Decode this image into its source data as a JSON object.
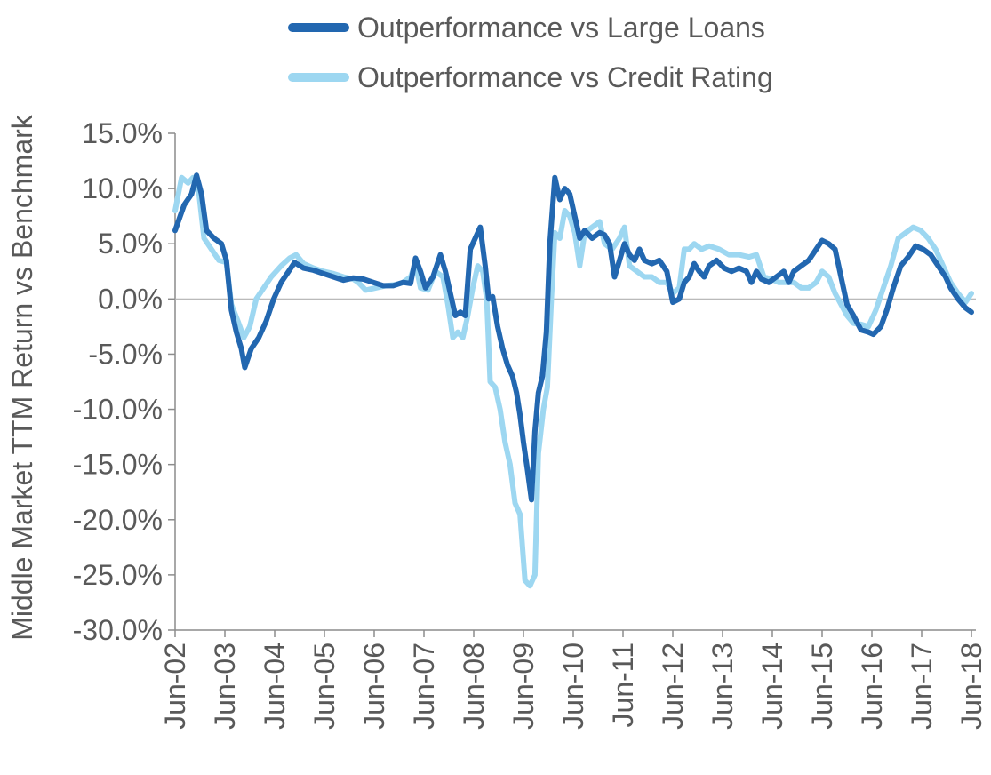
{
  "chart_data": {
    "type": "line",
    "title": "",
    "xlabel": "",
    "ylabel": "Middle Market TTM Return vs Benchmark",
    "ylim": [
      -30,
      15
    ],
    "y_ticks": [
      "15.0%",
      "10.0%",
      "5.0%",
      "0.0%",
      "-5.0%",
      "-10.0%",
      "-15.0%",
      "-20.0%",
      "-25.0%",
      "-30.0%"
    ],
    "x_ticks": [
      "Jun-02",
      "Jun-03",
      "Jun-04",
      "Jun-05",
      "Jun-06",
      "Jun-07",
      "Jun-08",
      "Jun-09",
      "Jun-10",
      "Jun-11",
      "Jun-12",
      "Jun-13",
      "Jun-14",
      "Jun-15",
      "Jun-16",
      "Jun-17",
      "Jun-18"
    ],
    "grid": false,
    "legend_position": "top",
    "series": [
      {
        "name": "Outperformance vs Large Loans",
        "color": "#2267b0",
        "points": [
          [
            2002.42,
            6.2
          ],
          [
            2002.6,
            8.5
          ],
          [
            2002.75,
            9.5
          ],
          [
            2002.85,
            11.2
          ],
          [
            2002.95,
            9.5
          ],
          [
            2003.05,
            6.2
          ],
          [
            2003.2,
            5.5
          ],
          [
            2003.35,
            5.0
          ],
          [
            2003.45,
            3.5
          ],
          [
            2003.55,
            -1.0
          ],
          [
            2003.65,
            -3.0
          ],
          [
            2003.75,
            -4.5
          ],
          [
            2003.82,
            -6.2
          ],
          [
            2003.95,
            -4.5
          ],
          [
            2004.1,
            -3.5
          ],
          [
            2004.25,
            -2.0
          ],
          [
            2004.4,
            0.0
          ],
          [
            2004.55,
            1.5
          ],
          [
            2004.7,
            2.5
          ],
          [
            2004.82,
            3.3
          ],
          [
            2005.0,
            2.8
          ],
          [
            2005.2,
            2.6
          ],
          [
            2005.4,
            2.3
          ],
          [
            2005.6,
            2.0
          ],
          [
            2005.8,
            1.7
          ],
          [
            2006.0,
            1.9
          ],
          [
            2006.2,
            1.8
          ],
          [
            2006.4,
            1.5
          ],
          [
            2006.6,
            1.2
          ],
          [
            2006.8,
            1.2
          ],
          [
            2007.0,
            1.5
          ],
          [
            2007.15,
            1.4
          ],
          [
            2007.25,
            3.7
          ],
          [
            2007.35,
            2.5
          ],
          [
            2007.45,
            1.0
          ],
          [
            2007.6,
            2.0
          ],
          [
            2007.75,
            4.0
          ],
          [
            2007.85,
            2.5
          ],
          [
            2007.95,
            0.5
          ],
          [
            2008.05,
            -1.5
          ],
          [
            2008.15,
            -1.2
          ],
          [
            2008.25,
            -1.5
          ],
          [
            2008.35,
            4.5
          ],
          [
            2008.45,
            5.5
          ],
          [
            2008.55,
            6.5
          ],
          [
            2008.65,
            3.0
          ],
          [
            2008.72,
            0.0
          ],
          [
            2008.8,
            0.2
          ],
          [
            2008.9,
            -2.5
          ],
          [
            2009.0,
            -4.5
          ],
          [
            2009.1,
            -6.0
          ],
          [
            2009.2,
            -7.0
          ],
          [
            2009.28,
            -8.5
          ],
          [
            2009.35,
            -10.5
          ],
          [
            2009.42,
            -13.0
          ],
          [
            2009.5,
            -15.5
          ],
          [
            2009.58,
            -18.2
          ],
          [
            2009.65,
            -12.0
          ],
          [
            2009.72,
            -8.5
          ],
          [
            2009.8,
            -7.0
          ],
          [
            2009.88,
            -3.0
          ],
          [
            2009.95,
            5.0
          ],
          [
            2010.05,
            11.0
          ],
          [
            2010.15,
            9.0
          ],
          [
            2010.25,
            10.0
          ],
          [
            2010.35,
            9.5
          ],
          [
            2010.45,
            7.5
          ],
          [
            2010.55,
            5.5
          ],
          [
            2010.65,
            6.2
          ],
          [
            2010.8,
            5.5
          ],
          [
            2010.95,
            6.0
          ],
          [
            2011.05,
            5.8
          ],
          [
            2011.15,
            5.0
          ],
          [
            2011.25,
            2.0
          ],
          [
            2011.35,
            3.5
          ],
          [
            2011.45,
            5.0
          ],
          [
            2011.55,
            4.0
          ],
          [
            2011.65,
            3.5
          ],
          [
            2011.75,
            4.5
          ],
          [
            2011.85,
            3.5
          ],
          [
            2012.0,
            3.2
          ],
          [
            2012.15,
            3.5
          ],
          [
            2012.3,
            2.5
          ],
          [
            2012.42,
            -0.3
          ],
          [
            2012.55,
            0.0
          ],
          [
            2012.65,
            1.5
          ],
          [
            2012.75,
            2.0
          ],
          [
            2012.85,
            3.2
          ],
          [
            2012.95,
            2.5
          ],
          [
            2013.05,
            2.0
          ],
          [
            2013.15,
            3.0
          ],
          [
            2013.3,
            3.5
          ],
          [
            2013.45,
            2.8
          ],
          [
            2013.6,
            2.5
          ],
          [
            2013.75,
            2.8
          ],
          [
            2013.9,
            2.5
          ],
          [
            2014.0,
            1.5
          ],
          [
            2014.1,
            2.5
          ],
          [
            2014.2,
            1.8
          ],
          [
            2014.35,
            1.5
          ],
          [
            2014.5,
            2.0
          ],
          [
            2014.65,
            2.5
          ],
          [
            2014.75,
            1.5
          ],
          [
            2014.85,
            2.5
          ],
          [
            2015.0,
            3.0
          ],
          [
            2015.15,
            3.5
          ],
          [
            2015.3,
            4.5
          ],
          [
            2015.42,
            5.3
          ],
          [
            2015.55,
            5.0
          ],
          [
            2015.68,
            4.5
          ],
          [
            2015.8,
            2.0
          ],
          [
            2015.92,
            -0.5
          ],
          [
            2016.05,
            -1.5
          ],
          [
            2016.2,
            -2.8
          ],
          [
            2016.35,
            -3.0
          ],
          [
            2016.45,
            -3.2
          ],
          [
            2016.6,
            -2.5
          ],
          [
            2016.72,
            -1.0
          ],
          [
            2016.85,
            1.0
          ],
          [
            2017.0,
            3.0
          ],
          [
            2017.15,
            3.8
          ],
          [
            2017.3,
            4.8
          ],
          [
            2017.45,
            4.5
          ],
          [
            2017.6,
            4.0
          ],
          [
            2017.75,
            3.0
          ],
          [
            2017.9,
            2.0
          ],
          [
            2018.0,
            1.0
          ],
          [
            2018.15,
            0.0
          ],
          [
            2018.3,
            -0.8
          ],
          [
            2018.42,
            -1.2
          ]
        ]
      },
      {
        "name": "Outperformance vs Credit Rating",
        "color": "#9dd7f1",
        "points": [
          [
            2002.42,
            8.0
          ],
          [
            2002.55,
            11.0
          ],
          [
            2002.68,
            10.5
          ],
          [
            2002.78,
            11.0
          ],
          [
            2002.9,
            9.5
          ],
          [
            2003.0,
            5.5
          ],
          [
            2003.15,
            4.5
          ],
          [
            2003.3,
            3.5
          ],
          [
            2003.45,
            3.3
          ],
          [
            2003.55,
            -0.5
          ],
          [
            2003.68,
            -2.0
          ],
          [
            2003.8,
            -3.5
          ],
          [
            2003.92,
            -2.5
          ],
          [
            2004.05,
            0.0
          ],
          [
            2004.2,
            1.0
          ],
          [
            2004.35,
            2.0
          ],
          [
            2004.55,
            3.0
          ],
          [
            2004.72,
            3.7
          ],
          [
            2004.85,
            4.0
          ],
          [
            2005.0,
            3.2
          ],
          [
            2005.2,
            2.8
          ],
          [
            2005.4,
            2.5
          ],
          [
            2005.6,
            2.3
          ],
          [
            2005.8,
            2.0
          ],
          [
            2006.0,
            1.8
          ],
          [
            2006.1,
            1.5
          ],
          [
            2006.25,
            0.8
          ],
          [
            2006.45,
            1.0
          ],
          [
            2006.65,
            1.2
          ],
          [
            2006.85,
            1.3
          ],
          [
            2007.0,
            1.5
          ],
          [
            2007.15,
            2.0
          ],
          [
            2007.25,
            3.2
          ],
          [
            2007.35,
            1.0
          ],
          [
            2007.5,
            0.8
          ],
          [
            2007.65,
            2.5
          ],
          [
            2007.8,
            2.0
          ],
          [
            2007.9,
            -0.5
          ],
          [
            2008.0,
            -3.5
          ],
          [
            2008.1,
            -3.0
          ],
          [
            2008.2,
            -3.5
          ],
          [
            2008.3,
            -1.5
          ],
          [
            2008.4,
            1.0
          ],
          [
            2008.5,
            3.0
          ],
          [
            2008.6,
            2.5
          ],
          [
            2008.68,
            0.0
          ],
          [
            2008.75,
            -7.5
          ],
          [
            2008.85,
            -8.0
          ],
          [
            2008.95,
            -10.0
          ],
          [
            2009.05,
            -13.0
          ],
          [
            2009.15,
            -15.0
          ],
          [
            2009.25,
            -18.5
          ],
          [
            2009.35,
            -19.5
          ],
          [
            2009.45,
            -25.5
          ],
          [
            2009.55,
            -26.0
          ],
          [
            2009.65,
            -25.0
          ],
          [
            2009.72,
            -14.0
          ],
          [
            2009.82,
            -10.0
          ],
          [
            2009.9,
            -8.0
          ],
          [
            2009.98,
            0.0
          ],
          [
            2010.05,
            6.0
          ],
          [
            2010.15,
            5.5
          ],
          [
            2010.25,
            8.0
          ],
          [
            2010.35,
            7.5
          ],
          [
            2010.45,
            6.0
          ],
          [
            2010.55,
            3.0
          ],
          [
            2010.65,
            6.0
          ],
          [
            2010.8,
            6.5
          ],
          [
            2010.95,
            7.0
          ],
          [
            2011.05,
            5.0
          ],
          [
            2011.2,
            4.5
          ],
          [
            2011.35,
            5.5
          ],
          [
            2011.45,
            6.5
          ],
          [
            2011.55,
            3.0
          ],
          [
            2011.7,
            2.5
          ],
          [
            2011.85,
            2.0
          ],
          [
            2012.0,
            2.0
          ],
          [
            2012.15,
            1.5
          ],
          [
            2012.3,
            1.5
          ],
          [
            2012.42,
            0.5
          ],
          [
            2012.55,
            1.0
          ],
          [
            2012.65,
            4.5
          ],
          [
            2012.75,
            4.5
          ],
          [
            2012.85,
            5.0
          ],
          [
            2013.0,
            4.5
          ],
          [
            2013.15,
            4.8
          ],
          [
            2013.35,
            4.5
          ],
          [
            2013.55,
            4.0
          ],
          [
            2013.75,
            4.0
          ],
          [
            2013.95,
            3.8
          ],
          [
            2014.1,
            4.0
          ],
          [
            2014.25,
            2.0
          ],
          [
            2014.4,
            1.8
          ],
          [
            2014.55,
            1.5
          ],
          [
            2014.7,
            1.5
          ],
          [
            2014.85,
            1.5
          ],
          [
            2015.0,
            1.0
          ],
          [
            2015.15,
            1.0
          ],
          [
            2015.3,
            1.5
          ],
          [
            2015.42,
            2.5
          ],
          [
            2015.55,
            2.0
          ],
          [
            2015.68,
            0.5
          ],
          [
            2015.8,
            -0.5
          ],
          [
            2015.92,
            -1.5
          ],
          [
            2016.05,
            -2.2
          ],
          [
            2016.2,
            -2.3
          ],
          [
            2016.35,
            -2.5
          ],
          [
            2016.5,
            -1.0
          ],
          [
            2016.65,
            1.0
          ],
          [
            2016.8,
            3.0
          ],
          [
            2016.95,
            5.5
          ],
          [
            2017.1,
            6.0
          ],
          [
            2017.25,
            6.5
          ],
          [
            2017.4,
            6.2
          ],
          [
            2017.55,
            5.5
          ],
          [
            2017.7,
            4.5
          ],
          [
            2017.85,
            3.0
          ],
          [
            2018.0,
            1.5
          ],
          [
            2018.15,
            0.5
          ],
          [
            2018.3,
            -0.3
          ],
          [
            2018.42,
            0.5
          ]
        ]
      }
    ]
  }
}
